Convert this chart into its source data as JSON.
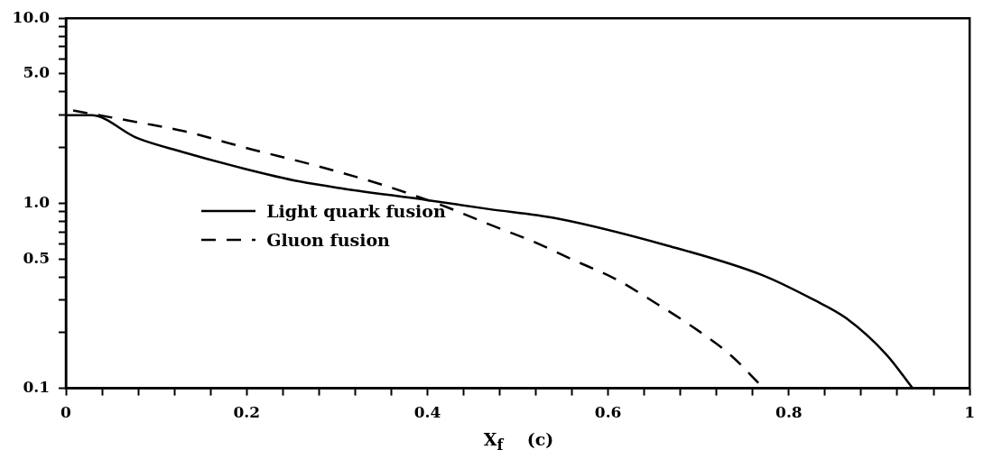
{
  "chart_data": {
    "type": "line",
    "xlabel": "X$_{f}$    (c)",
    "xlim": [
      0,
      1
    ],
    "xticks": [
      0,
      {
        "value": 0.04,
        "label": null
      },
      {
        "value": 0.08,
        "label": null
      },
      {
        "value": 0.12,
        "label": null
      },
      {
        "value": 0.16,
        "label": null
      },
      0.2,
      {
        "value": 0.24,
        "label": null
      },
      {
        "value": 0.28,
        "label": null
      },
      {
        "value": 0.32,
        "label": null
      },
      {
        "value": 0.36,
        "label": null
      },
      0.4,
      {
        "value": 0.44,
        "label": null
      },
      {
        "value": 0.48,
        "label": null
      },
      {
        "value": 0.52,
        "label": null
      },
      {
        "value": 0.56,
        "label": null
      },
      0.6,
      {
        "value": 0.64,
        "label": null
      },
      {
        "value": 0.68,
        "label": null
      },
      {
        "value": 0.72,
        "label": null
      },
      {
        "value": 0.76,
        "label": null
      },
      0.8,
      {
        "value": 0.84,
        "label": null
      },
      {
        "value": 0.88,
        "label": null
      },
      {
        "value": 0.92,
        "label": null
      },
      {
        "value": 0.96,
        "label": null
      },
      1
    ],
    "ylim": [
      0.1,
      10
    ],
    "log": "y",
    "yticks": [
      0.1,
      {
        "value": 0.2,
        "label": null
      },
      {
        "value": 0.3,
        "label": null
      },
      {
        "value": 0.4,
        "label": null
      },
      0.5,
      {
        "value": 0.6,
        "label": null
      },
      {
        "value": 0.7,
        "label": null
      },
      {
        "value": 0.8,
        "label": null
      },
      {
        "value": 0.9,
        "label": null
      },
      {
        "value": 1,
        "label": "1.0"
      },
      {
        "value": 2,
        "label": null
      },
      {
        "value": 3,
        "label": null
      },
      {
        "value": 4,
        "label": null
      },
      {
        "value": 5,
        "label": "5.0"
      },
      {
        "value": 6,
        "label": null
      },
      {
        "value": 7,
        "label": null
      },
      {
        "value": 8,
        "label": null
      },
      {
        "value": 9,
        "label": null
      },
      {
        "value": 10,
        "label": "10.0"
      }
    ],
    "grid": false,
    "legend": "center left",
    "marker": "none",
    "series": [
      {
        "name": "Light quark fusion",
        "color": "#000000",
        "line_style": "solid",
        "x": [
          0,
          0.028,
          0.079,
          0.128,
          0.197,
          0.259,
          0.307,
          0.4,
          0.468,
          0.542,
          0.666,
          0.77,
          0.828,
          0.863,
          0.908,
          0.937
        ],
        "values": [
          2.99,
          2.99,
          2.25,
          1.9,
          1.54,
          1.31,
          1.2,
          1.04,
          0.93,
          0.83,
          0.59,
          0.41,
          0.3,
          0.24,
          0.152,
          0.1
        ]
      },
      {
        "name": "Gluon fusion",
        "color": "#000000",
        "line_style": "dashed",
        "x": [
          0.008,
          0.083,
          0.131,
          0.203,
          0.276,
          0.352,
          0.421,
          0.468,
          0.514,
          0.563,
          0.608,
          0.652,
          0.694,
          0.735,
          0.772
        ],
        "values": [
          3.17,
          2.72,
          2.45,
          1.97,
          1.6,
          1.25,
          0.955,
          0.77,
          0.63,
          0.49,
          0.39,
          0.29,
          0.214,
          0.152,
          0.1
        ]
      }
    ]
  }
}
